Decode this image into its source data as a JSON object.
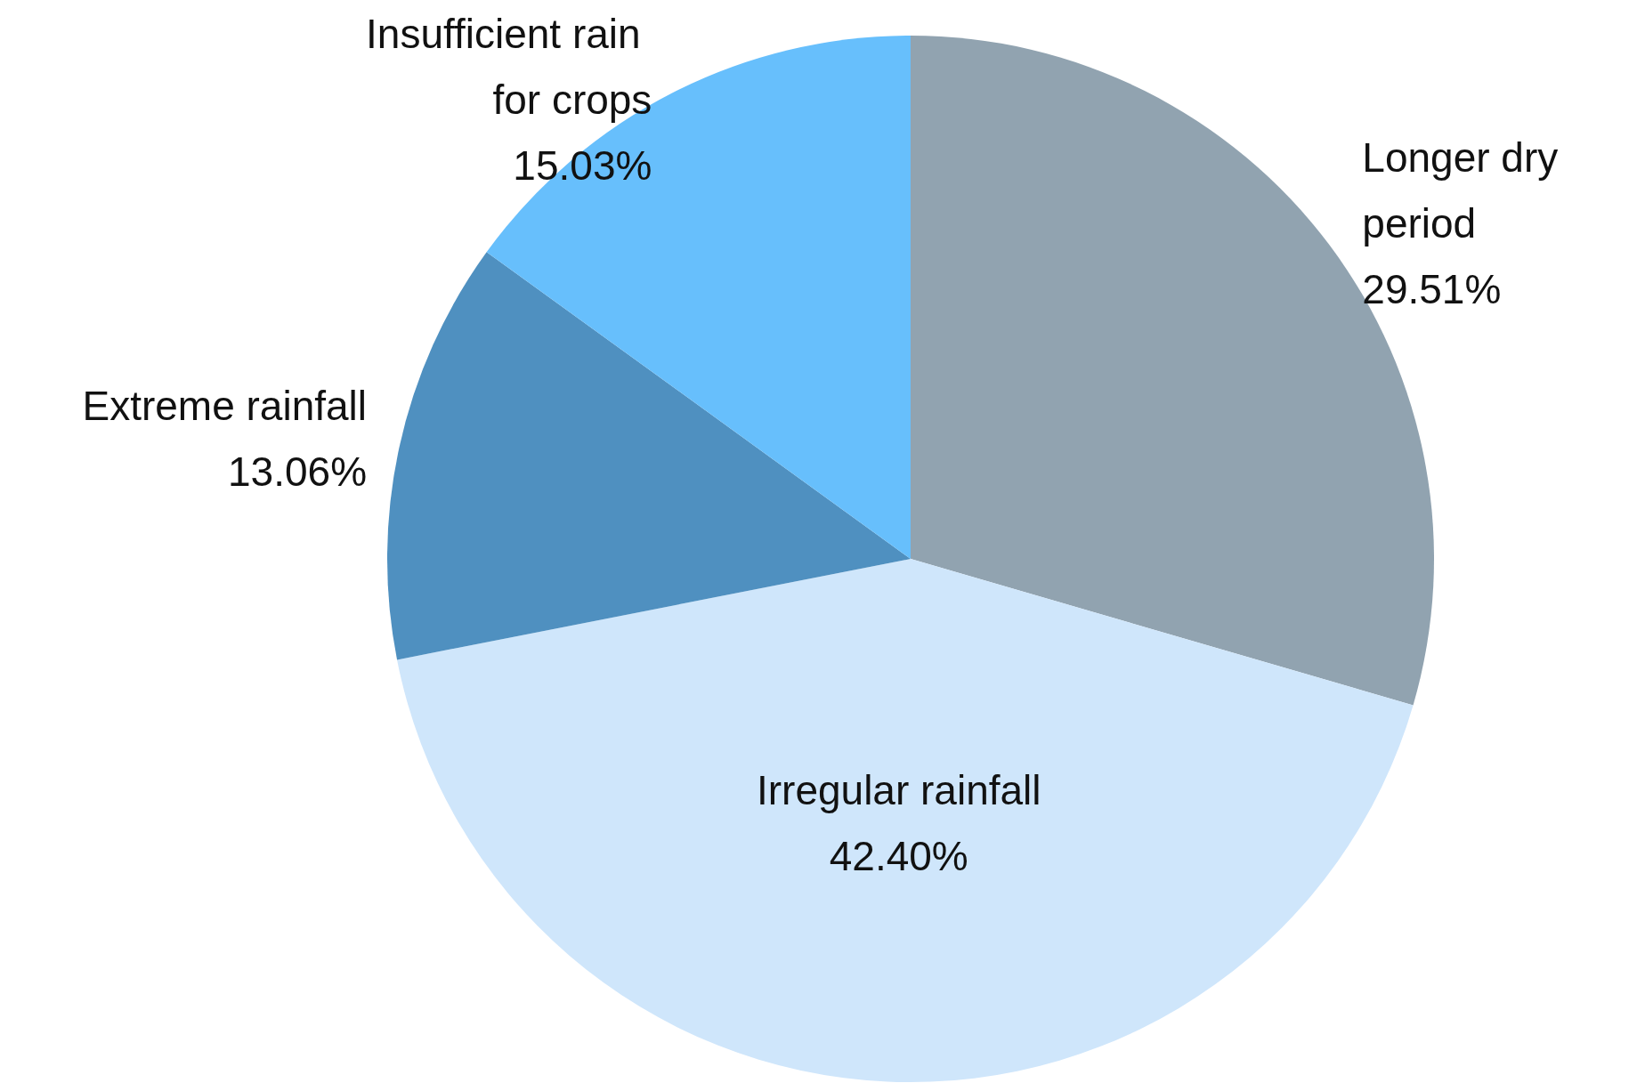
{
  "chart_data": {
    "type": "pie",
    "categories": [
      "Longer dry period",
      "Irregular rainfall",
      "Extreme rainfall",
      "Insufficient rain for crops"
    ],
    "values": [
      29.51,
      42.4,
      13.06,
      15.03
    ],
    "value_labels": [
      "29.51%",
      "42.40%",
      "13.06%",
      "15.03%"
    ],
    "colors": [
      "#91a3b0",
      "#cfe6fb",
      "#4f90c0",
      "#67bffc"
    ],
    "legend": false
  }
}
